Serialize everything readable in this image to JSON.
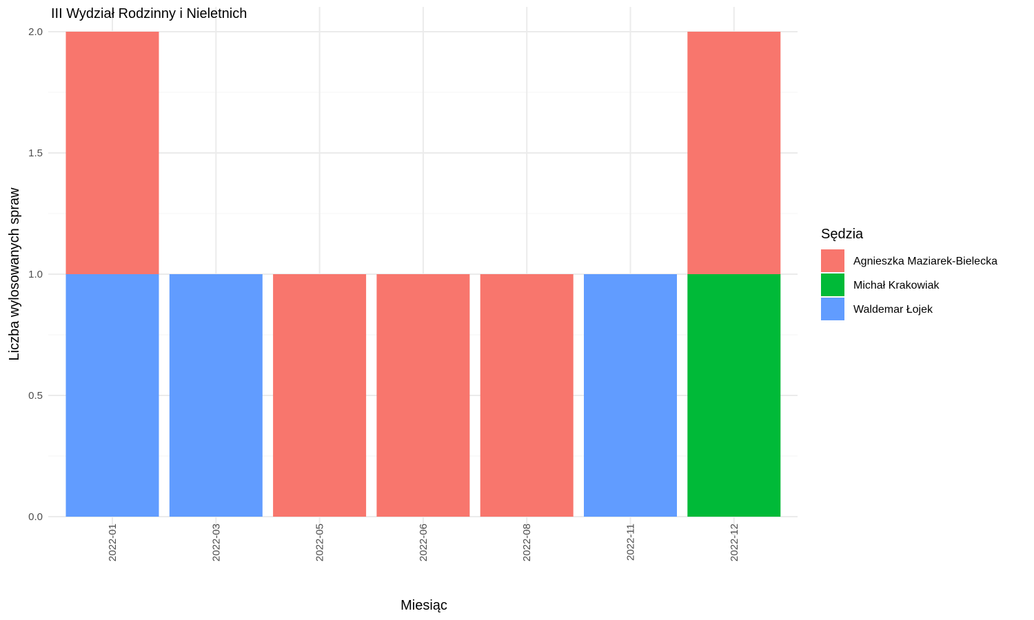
{
  "chart_data": {
    "type": "bar",
    "stacked": true,
    "title": "III Wydział Rodzinny i Nieletnich",
    "xlabel": "Miesiąc",
    "ylabel": "Liczba wylosowanych spraw",
    "ylim": [
      0,
      2
    ],
    "yticks": [
      "0.0",
      "0.5",
      "1.0",
      "1.5",
      "2.0"
    ],
    "ytick_values": [
      0,
      0.5,
      1,
      1.5,
      2
    ],
    "grid": true,
    "legend": {
      "title": "Sędzia",
      "placement": "right"
    },
    "categories": [
      "2022-01",
      "2022-03",
      "2022-05",
      "2022-06",
      "2022-08",
      "2022-11",
      "2022-12"
    ],
    "series": [
      {
        "name": "Agnieszka Maziarek-Bielecka",
        "color": "#F8766D",
        "values": [
          1,
          0,
          1,
          1,
          1,
          0,
          1
        ]
      },
      {
        "name": "Michał Krakowiak",
        "color": "#00BA38",
        "values": [
          0,
          0,
          0,
          0,
          0,
          0,
          1
        ]
      },
      {
        "name": "Waldemar Łojek",
        "color": "#619CFF",
        "values": [
          1,
          1,
          0,
          0,
          0,
          1,
          0
        ]
      }
    ]
  }
}
